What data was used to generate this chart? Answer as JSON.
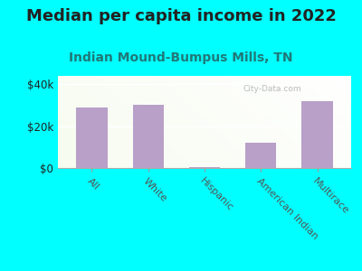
{
  "title": "Median per capita income in 2022",
  "subtitle": "Indian Mound-Bumpus Mills, TN",
  "categories": [
    "All",
    "White",
    "Hispanic",
    "American Indian",
    "Multirace"
  ],
  "values": [
    29000,
    30000,
    400,
    12000,
    32000
  ],
  "bar_color": "#b8a0c8",
  "background_color": "#00ffff",
  "title_color": "#222222",
  "subtitle_color": "#227777",
  "ytick_labels": [
    "$0",
    "$20k",
    "$40k"
  ],
  "ytick_values": [
    0,
    20000,
    40000
  ],
  "ylim": [
    0,
    44000
  ],
  "watermark": "City-Data.com",
  "title_fontsize": 13,
  "subtitle_fontsize": 10
}
